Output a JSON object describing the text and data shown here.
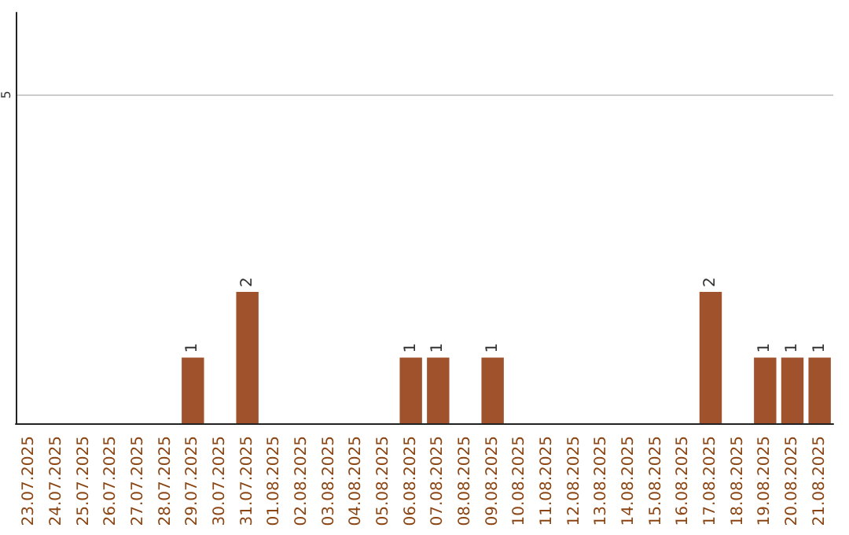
{
  "chart_data": {
    "type": "bar",
    "categories": [
      "23.07.2025",
      "24.07.2025",
      "25.07.2025",
      "26.07.2025",
      "27.07.2025",
      "28.07.2025",
      "29.07.2025",
      "30.07.2025",
      "31.07.2025",
      "01.08.2025",
      "02.08.2025",
      "03.08.2025",
      "04.08.2025",
      "05.08.2025",
      "06.08.2025",
      "07.08.2025",
      "08.08.2025",
      "09.08.2025",
      "10.08.2025",
      "11.08.2025",
      "12.08.2025",
      "13.08.2025",
      "14.08.2025",
      "15.08.2025",
      "16.08.2025",
      "17.08.2025",
      "18.08.2025",
      "19.08.2025",
      "20.08.2025",
      "21.08.2025"
    ],
    "values": [
      0,
      0,
      0,
      0,
      0,
      0,
      1,
      0,
      2,
      0,
      0,
      0,
      0,
      0,
      1,
      1,
      0,
      1,
      0,
      0,
      0,
      0,
      0,
      0,
      0,
      2,
      0,
      1,
      1,
      1
    ],
    "value_labels": [
      null,
      null,
      null,
      null,
      null,
      null,
      "1",
      null,
      "2",
      null,
      null,
      null,
      null,
      null,
      "1",
      "1",
      null,
      "1",
      null,
      null,
      null,
      null,
      null,
      null,
      null,
      "2",
      null,
      "1",
      "1",
      "1"
    ],
    "color": "#a0522d",
    "ylim": [
      0,
      6.25
    ],
    "yticks": [
      5
    ],
    "grid": "y"
  }
}
